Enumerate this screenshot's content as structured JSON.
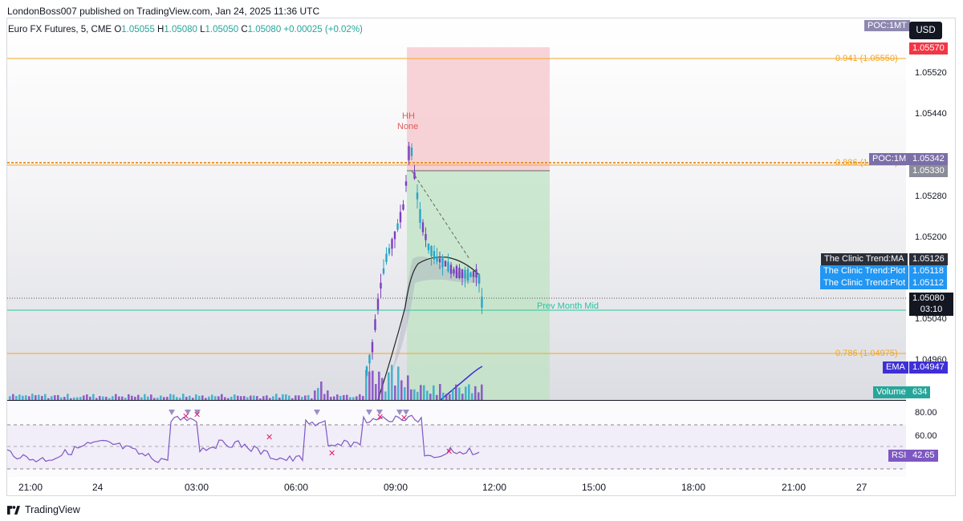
{
  "publisher": "LondonBoss007 published on TradingView.com, Jan 24, 2025 11:36 UTC",
  "currency": "USD",
  "poc_mt": "POC:1MT",
  "legend": {
    "symbol": "Euro FX Futures, 5, CME",
    "o_label": "O",
    "o": "1.05055",
    "h_label": "H",
    "h": "1.05080",
    "l_label": "L",
    "l": "1.05050",
    "c_label": "C",
    "c": "1.05080",
    "change": "+0.00025 (+0.02%)"
  },
  "annotations": {
    "hh": "HH",
    "none": "None",
    "fib_941": "0.941 (1.05550)",
    "fib_886": "0.886 (1.05330)",
    "fib_786": "0.786 (1.04975)",
    "prev_month_mid": "Prev Month Mid"
  },
  "price_axis": {
    "ticks": [
      "1.05520",
      "1.05440",
      "1.05280",
      "1.05200",
      "1.05040",
      "1.04960"
    ],
    "price_tag_red": "1.05570",
    "poc_1m_label": "POC:1M",
    "poc_1m_value": "1.05342",
    "level_gray": "1.05330",
    "clinic_ma_label": "The Clinic Trend:MA",
    "clinic_ma_value": "1.05126",
    "clinic_plot1_label": "The Clinic Trend:Plot",
    "clinic_plot1_value": "1.05118",
    "clinic_plot2_label": "The Clinic Trend:Plot",
    "clinic_plot2_value": "1.05112",
    "last_price": "1.05080",
    "countdown": "03:10",
    "ema_label": "EMA",
    "ema_value": "1.04947",
    "volume_label": "Volume",
    "volume_value": "634"
  },
  "rsi": {
    "label": "RSI",
    "value": "42.65",
    "ticks": [
      "80.00",
      "60.00"
    ]
  },
  "time_axis": [
    "21:00",
    "24",
    "03:00",
    "06:00",
    "09:00",
    "12:00",
    "15:00",
    "18:00",
    "21:00",
    "27"
  ],
  "footer": {
    "brand": "TradingView"
  },
  "colors": {
    "up": "#26a6c8",
    "down": "#7b3fbf",
    "fib": "#f5a623",
    "prev_month": "#26c6a0",
    "stop_zone": "#f8c8cc",
    "target_zone": "#c8e6c9",
    "rsi_line": "#7e57c2"
  }
}
